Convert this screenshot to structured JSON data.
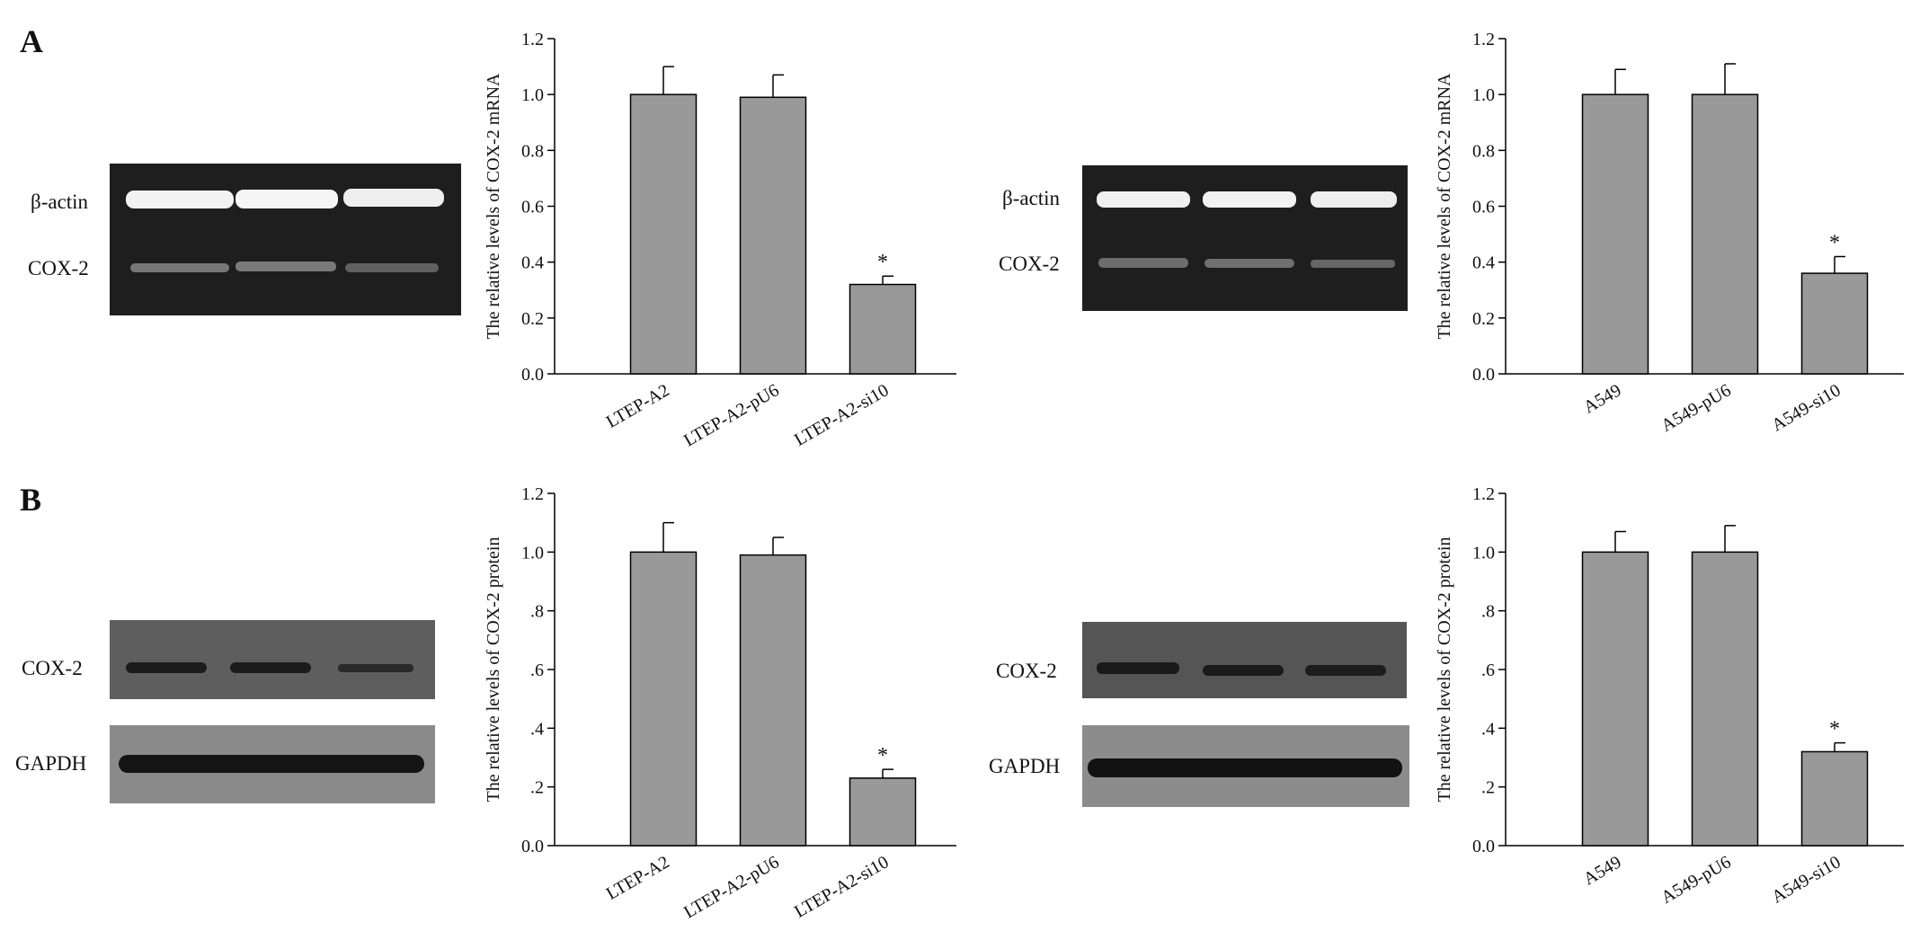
{
  "panels": [
    "A",
    "B"
  ],
  "gels": [
    {
      "labels": [
        "β-actin",
        "COX-2"
      ]
    },
    {
      "labels": [
        "β-actin",
        "COX-2"
      ]
    },
    {
      "labels": [
        "COX-2",
        "GAPDH"
      ]
    },
    {
      "labels": [
        "COX-2",
        "GAPDH"
      ]
    }
  ],
  "chart_data": [
    {
      "type": "bar",
      "y_label": "The relative levels of COX-2 mRNA",
      "categories": [
        "LTEP-A2",
        "LTEP-A2-pU6",
        "LTEP-A2-si10"
      ],
      "series": [
        {
          "color": "#999999",
          "values": [
            1.0,
            0.99,
            0.32
          ],
          "errors": [
            0.1,
            0.08,
            0.03
          ]
        }
      ],
      "bar_labels": [
        null,
        null,
        "*"
      ],
      "ylim": [
        0,
        1.2
      ],
      "yticks": [
        {
          "value": 0,
          "label": "0.0"
        },
        0.2,
        0.4,
        0.6,
        0.8,
        {
          "value": 1,
          "label": "1.0"
        },
        1.2
      ]
    },
    {
      "type": "bar",
      "y_label": "The relative levels of COX-2 mRNA",
      "categories": [
        "A549",
        "A549-pU6",
        "A549-si10"
      ],
      "series": [
        {
          "color": "#999999",
          "values": [
            1.0,
            1.0,
            0.36
          ],
          "errors": [
            0.09,
            0.11,
            0.06
          ]
        }
      ],
      "bar_labels": [
        null,
        null,
        "*"
      ],
      "ylim": [
        0,
        1.2
      ],
      "yticks": [
        {
          "value": 0,
          "label": "0.0"
        },
        0.2,
        0.4,
        0.6,
        0.8,
        {
          "value": 1,
          "label": "1.0"
        },
        1.2
      ]
    },
    {
      "type": "bar",
      "y_label": "The relative levels of COX-2 protein",
      "categories": [
        "LTEP-A2",
        "LTEP-A2-pU6",
        "LTEP-A2-si10"
      ],
      "series": [
        {
          "color": "#999999",
          "values": [
            1.0,
            0.99,
            0.23
          ],
          "errors": [
            0.1,
            0.06,
            0.03
          ]
        }
      ],
      "bar_labels": [
        null,
        null,
        "*"
      ],
      "ylim": [
        0,
        1.2
      ],
      "yticks": [
        {
          "value": 0,
          "label": "0.0"
        },
        {
          "value": 0.2,
          "label": ".2"
        },
        {
          "value": 0.4,
          "label": ".4"
        },
        {
          "value": 0.6,
          "label": ".6"
        },
        {
          "value": 0.8,
          "label": ".8"
        },
        {
          "value": 1,
          "label": "1.0"
        },
        1.2
      ]
    },
    {
      "type": "bar",
      "y_label": "The relative levels of COX-2 protein",
      "categories": [
        "A549",
        "A549-pU6",
        "A549-si10"
      ],
      "series": [
        {
          "color": "#999999",
          "values": [
            1.0,
            1.0,
            0.32
          ],
          "errors": [
            0.07,
            0.09,
            0.03
          ]
        }
      ],
      "bar_labels": [
        null,
        null,
        "*"
      ],
      "ylim": [
        0,
        1.2
      ],
      "yticks": [
        {
          "value": 0,
          "label": "0.0"
        },
        {
          "value": 0.2,
          "label": ".2"
        },
        {
          "value": 0.4,
          "label": ".4"
        },
        {
          "value": 0.6,
          "label": ".6"
        },
        {
          "value": 0.8,
          "label": ".8"
        },
        {
          "value": 1,
          "label": "1.0"
        },
        1.2
      ]
    }
  ]
}
